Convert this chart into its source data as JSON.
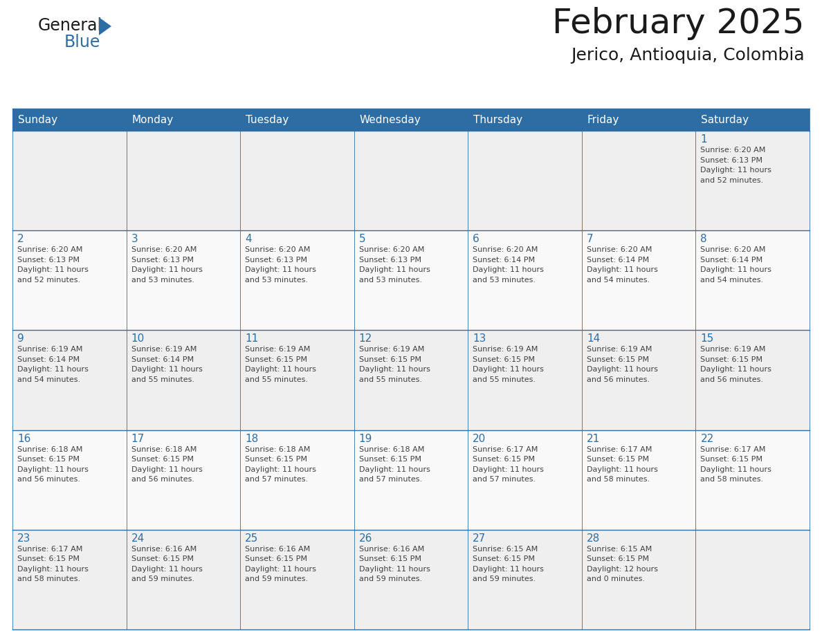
{
  "title": "February 2025",
  "subtitle": "Jerico, Antioquia, Colombia",
  "header_bg": "#2e6da4",
  "header_text": "#ffffff",
  "cell_bg_odd": "#efefef",
  "cell_bg_even": "#f9f9f9",
  "day_text": "#2e6da4",
  "info_text": "#404040",
  "line_color": "#2e6da4",
  "days_of_week": [
    "Sunday",
    "Monday",
    "Tuesday",
    "Wednesday",
    "Thursday",
    "Friday",
    "Saturday"
  ],
  "weeks": [
    [
      null,
      null,
      null,
      null,
      null,
      null,
      1
    ],
    [
      2,
      3,
      4,
      5,
      6,
      7,
      8
    ],
    [
      9,
      10,
      11,
      12,
      13,
      14,
      15
    ],
    [
      16,
      17,
      18,
      19,
      20,
      21,
      22
    ],
    [
      23,
      24,
      25,
      26,
      27,
      28,
      null
    ]
  ],
  "day_data": {
    "1": {
      "sunrise": "6:20 AM",
      "sunset": "6:13 PM",
      "daylight_hours": "11",
      "daylight_minutes": "52"
    },
    "2": {
      "sunrise": "6:20 AM",
      "sunset": "6:13 PM",
      "daylight_hours": "11",
      "daylight_minutes": "52"
    },
    "3": {
      "sunrise": "6:20 AM",
      "sunset": "6:13 PM",
      "daylight_hours": "11",
      "daylight_minutes": "53"
    },
    "4": {
      "sunrise": "6:20 AM",
      "sunset": "6:13 PM",
      "daylight_hours": "11",
      "daylight_minutes": "53"
    },
    "5": {
      "sunrise": "6:20 AM",
      "sunset": "6:13 PM",
      "daylight_hours": "11",
      "daylight_minutes": "53"
    },
    "6": {
      "sunrise": "6:20 AM",
      "sunset": "6:14 PM",
      "daylight_hours": "11",
      "daylight_minutes": "53"
    },
    "7": {
      "sunrise": "6:20 AM",
      "sunset": "6:14 PM",
      "daylight_hours": "11",
      "daylight_minutes": "54"
    },
    "8": {
      "sunrise": "6:20 AM",
      "sunset": "6:14 PM",
      "daylight_hours": "11",
      "daylight_minutes": "54"
    },
    "9": {
      "sunrise": "6:19 AM",
      "sunset": "6:14 PM",
      "daylight_hours": "11",
      "daylight_minutes": "54"
    },
    "10": {
      "sunrise": "6:19 AM",
      "sunset": "6:14 PM",
      "daylight_hours": "11",
      "daylight_minutes": "55"
    },
    "11": {
      "sunrise": "6:19 AM",
      "sunset": "6:15 PM",
      "daylight_hours": "11",
      "daylight_minutes": "55"
    },
    "12": {
      "sunrise": "6:19 AM",
      "sunset": "6:15 PM",
      "daylight_hours": "11",
      "daylight_minutes": "55"
    },
    "13": {
      "sunrise": "6:19 AM",
      "sunset": "6:15 PM",
      "daylight_hours": "11",
      "daylight_minutes": "55"
    },
    "14": {
      "sunrise": "6:19 AM",
      "sunset": "6:15 PM",
      "daylight_hours": "11",
      "daylight_minutes": "56"
    },
    "15": {
      "sunrise": "6:19 AM",
      "sunset": "6:15 PM",
      "daylight_hours": "11",
      "daylight_minutes": "56"
    },
    "16": {
      "sunrise": "6:18 AM",
      "sunset": "6:15 PM",
      "daylight_hours": "11",
      "daylight_minutes": "56"
    },
    "17": {
      "sunrise": "6:18 AM",
      "sunset": "6:15 PM",
      "daylight_hours": "11",
      "daylight_minutes": "56"
    },
    "18": {
      "sunrise": "6:18 AM",
      "sunset": "6:15 PM",
      "daylight_hours": "11",
      "daylight_minutes": "57"
    },
    "19": {
      "sunrise": "6:18 AM",
      "sunset": "6:15 PM",
      "daylight_hours": "11",
      "daylight_minutes": "57"
    },
    "20": {
      "sunrise": "6:17 AM",
      "sunset": "6:15 PM",
      "daylight_hours": "11",
      "daylight_minutes": "57"
    },
    "21": {
      "sunrise": "6:17 AM",
      "sunset": "6:15 PM",
      "daylight_hours": "11",
      "daylight_minutes": "58"
    },
    "22": {
      "sunrise": "6:17 AM",
      "sunset": "6:15 PM",
      "daylight_hours": "11",
      "daylight_minutes": "58"
    },
    "23": {
      "sunrise": "6:17 AM",
      "sunset": "6:15 PM",
      "daylight_hours": "11",
      "daylight_minutes": "58"
    },
    "24": {
      "sunrise": "6:16 AM",
      "sunset": "6:15 PM",
      "daylight_hours": "11",
      "daylight_minutes": "59"
    },
    "25": {
      "sunrise": "6:16 AM",
      "sunset": "6:15 PM",
      "daylight_hours": "11",
      "daylight_minutes": "59"
    },
    "26": {
      "sunrise": "6:16 AM",
      "sunset": "6:15 PM",
      "daylight_hours": "11",
      "daylight_minutes": "59"
    },
    "27": {
      "sunrise": "6:15 AM",
      "sunset": "6:15 PM",
      "daylight_hours": "11",
      "daylight_minutes": "59"
    },
    "28": {
      "sunrise": "6:15 AM",
      "sunset": "6:15 PM",
      "daylight_hours": "12",
      "daylight_minutes": "0"
    }
  }
}
